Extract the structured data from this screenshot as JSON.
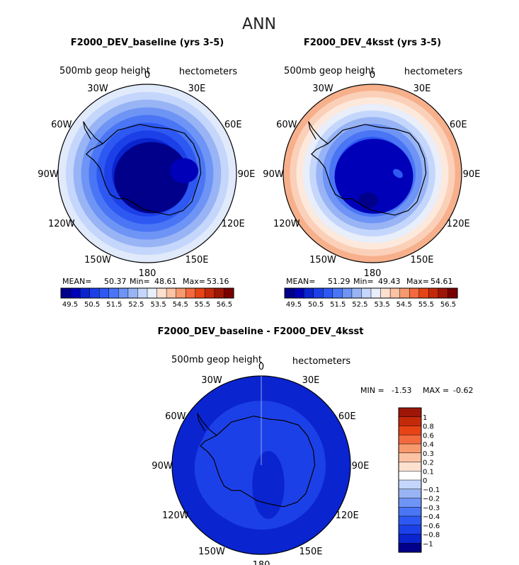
{
  "figure": {
    "title": "ANN"
  },
  "palette": {
    "blues": [
      "#00008a",
      "#0000b8",
      "#0a24d0",
      "#1c40e8",
      "#2e58f2",
      "#4a76f5",
      "#6e94f5",
      "#98b4f5",
      "#c4d6fb",
      "#e8eefa"
    ],
    "reds": [
      "#fde0d0",
      "#fbc2a4",
      "#f7996e",
      "#f26a3e",
      "#e64316",
      "#c42a0a",
      "#9e1606",
      "#7a0000"
    ],
    "white": "#ffffff",
    "coast": "#000000"
  },
  "chart_data": [
    {
      "type": "heatmap",
      "projection": "south-polar-stereographic",
      "title": "F2000_DEV_baseline (yrs 3-5)",
      "variable_label": "500mb geop height",
      "units_label": "hectometers",
      "longitude_labels": [
        "0",
        "30E",
        "60E",
        "90E",
        "120E",
        "150E",
        "180",
        "150W",
        "120W",
        "90W",
        "60W",
        "30W"
      ],
      "stats": {
        "mean_label": "MEAN=",
        "mean": "50.37",
        "min_label": "Min=",
        "min": "48.61",
        "max_label": "Max=",
        "max": "53.16"
      },
      "levels": [
        49.5,
        50,
        50.5,
        51,
        51.5,
        52,
        52.5,
        53,
        53.5,
        54,
        54.5,
        55,
        55.5,
        56,
        56.5
      ],
      "colorbar_labels": [
        "49.5",
        "50.5",
        "51.5",
        "52.5",
        "53.5",
        "54.5",
        "55.5",
        "56.5"
      ],
      "ring_colors": [
        "#e0eafb",
        "#c4d6fb",
        "#98b4f5",
        "#6e94f5",
        "#4a76f5",
        "#2e58f2",
        "#1c40e8",
        "#0a24d0",
        "#0000b8",
        "#00008a"
      ]
    },
    {
      "type": "heatmap",
      "projection": "south-polar-stereographic",
      "title": "F2000_DEV_4ksst (yrs 3-5)",
      "variable_label": "500mb geop height",
      "units_label": "hectometers",
      "longitude_labels": [
        "0",
        "30E",
        "60E",
        "90E",
        "120E",
        "150E",
        "180",
        "150W",
        "120W",
        "90W",
        "60W",
        "30W"
      ],
      "stats": {
        "mean_label": "MEAN=",
        "mean": "51.29",
        "min_label": "Min=",
        "min": "49.43",
        "max_label": "Max=",
        "max": "54.61"
      },
      "levels": [
        49.5,
        50,
        50.5,
        51,
        51.5,
        52,
        52.5,
        53,
        53.5,
        54,
        54.5,
        55,
        55.5,
        56,
        56.5
      ],
      "colorbar_labels": [
        "49.5",
        "50.5",
        "51.5",
        "52.5",
        "53.5",
        "54.5",
        "55.5",
        "56.5"
      ],
      "ring_colors": [
        "#f7b08c",
        "#fbd0b8",
        "#fde8dc",
        "#e8eefa",
        "#c4d6fb",
        "#98b4f5",
        "#6e94f5",
        "#4a76f5",
        "#2e58f2",
        "#1c40e8",
        "#0a24d0",
        "#0000b8"
      ]
    },
    {
      "type": "heatmap",
      "projection": "south-polar-stereographic",
      "title": "F2000_DEV_baseline - F2000_DEV_4ksst",
      "variable_label": "500mb geop height",
      "units_label": "hectometers",
      "longitude_labels": [
        "0",
        "30E",
        "60E",
        "90E",
        "120E",
        "150E",
        "180",
        "150W",
        "120W",
        "90W",
        "60W",
        "30W"
      ],
      "stats": {
        "min_label": "MIN =",
        "min": "-1.53",
        "max_label": "MAX =",
        "max": "-0.62"
      },
      "levels": [
        -1,
        -0.8,
        -0.6,
        -0.4,
        -0.3,
        -0.2,
        -0.1,
        0,
        0.1,
        0.2,
        0.3,
        0.4,
        0.6,
        0.8,
        1
      ],
      "colorbar_labels": [
        "1",
        "0.8",
        "0.6",
        "0.4",
        "0.3",
        "0.2",
        "0.1",
        "0",
        "−0.1",
        "−0.2",
        "−0.3",
        "−0.4",
        "−0.6",
        "−0.8",
        "−1"
      ],
      "colorbar_colors": [
        "#9e1606",
        "#c42a0a",
        "#e64316",
        "#f26a3e",
        "#f7996e",
        "#fbc2a4",
        "#fde0d0",
        "#ffffff",
        "#c4d6fb",
        "#98b4f5",
        "#6e94f5",
        "#4a76f5",
        "#2e58f2",
        "#1c40e8",
        "#0a24d0",
        "#00008a"
      ],
      "ring_colors": [
        "#0a24d0",
        "#1c40e8"
      ]
    }
  ]
}
